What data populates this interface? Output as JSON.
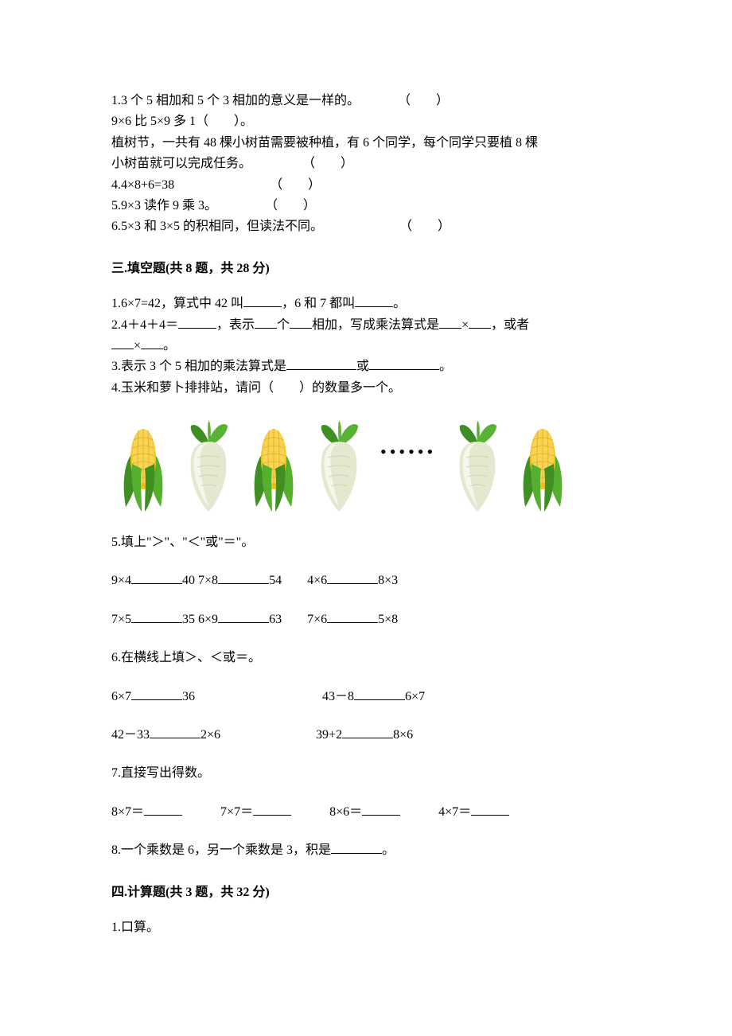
{
  "colors": {
    "text": "#000000",
    "background": "#ffffff",
    "corn_body": "#f5c21a",
    "corn_body_light": "#f8d454",
    "corn_leaf": "#56b02e",
    "corn_leaf_dark": "#3f8f22",
    "radish_body": "#f5f7ed",
    "radish_body_shade": "#e3e8cf",
    "radish_leaf": "#59b233",
    "radish_leaf_dark": "#3f8f22"
  },
  "typography": {
    "body_font": "SimSun / 宋体",
    "body_size_pt": 12,
    "line_height": 1.65,
    "bold_sections": true
  },
  "section2": {
    "items": [
      {
        "num": "1",
        "text": "3 个 5 相加和 5 个 3 相加的意义是一样的。",
        "paren_col": 38
      },
      {
        "num": "2",
        "text": "9×6 比 5×9 多 1（　　）。"
      },
      {
        "num": "3",
        "text_a": "植树节，一共有 48 棵小树苗需要被种植，有 6 个同学，每个同学只要植 8 棵",
        "text_b": "小树苗就可以完成任务。",
        "paren_col": 24
      },
      {
        "num": "4",
        "text": "4×8+6=38",
        "paren_col": 20
      },
      {
        "num": "5",
        "text": "9×3 读作 9 乘 3。",
        "paren_col": 20
      },
      {
        "num": "6",
        "text": "5×3 和 3×5 的积相同，但读法不同。",
        "paren_col": 38
      }
    ]
  },
  "section3": {
    "title": "三.填空题(共 8 题，共 28 分)",
    "q1_a": "1.6×7=42，算式中 42 叫",
    "q1_b": "，6 和 7 都叫",
    "q1_c": "。",
    "q2_a": "2.4＋4＋4＝",
    "q2_b": "，表示",
    "q2_c": "个",
    "q2_d": "相加，写成乘法算式是",
    "q2_e": "×",
    "q2_f": "，或者",
    "q2_g": "×",
    "q2_h": "。",
    "q3_a": "3.表示 3 个 5 相加的乘法算式是",
    "q3_b": "或",
    "q3_c": "。",
    "q4": "4.玉米和萝卜排排站，请问（　　）的数量多一个。",
    "veg_sequence": [
      "corn",
      "radish",
      "corn",
      "radish",
      "dots",
      "radish",
      "corn"
    ],
    "dots_text": "••••••",
    "q5_intro": "5.填上\"＞\"、\"＜\"或\"＝\"。",
    "q5_row1": {
      "a": "9×4",
      "b": "40 7×8",
      "c": "54",
      "d": "4×6",
      "e": "8×3"
    },
    "q5_row2": {
      "a": "7×5",
      "b": "35 6×9",
      "c": "63",
      "d": "7×6",
      "e": "5×8"
    },
    "q6_intro": "6.在横线上填＞、＜或＝。",
    "q6_row1": {
      "a": "6×7",
      "b": "36",
      "c": "43－8",
      "d": "6×7"
    },
    "q6_row2": {
      "a": "42－33",
      "b": "2×6",
      "c": "39+2",
      "d": "8×6"
    },
    "q7_intro": "7.直接写出得数。",
    "q7_items": [
      "8×7＝",
      "7×7＝",
      "8×6＝",
      "4×7＝"
    ],
    "q8_a": "8.一个乘数是 6，另一个乘数是 3，积是",
    "q8_b": "。"
  },
  "section4": {
    "title": "四.计算题(共 3 题，共 32 分)",
    "q1": "1.口算。"
  }
}
